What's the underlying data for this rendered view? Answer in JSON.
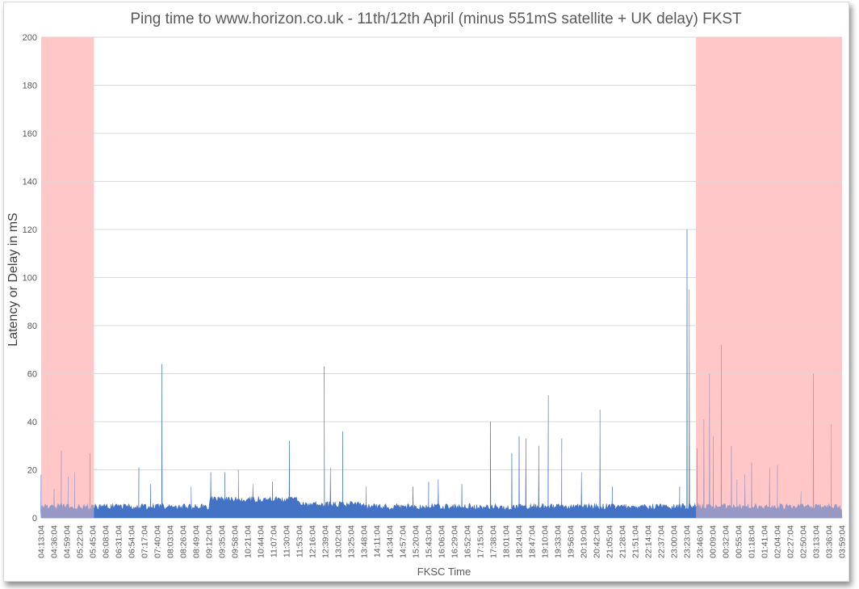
{
  "chart_data": {
    "type": "area",
    "title": "Ping time to www.horizon.co.uk  - 11th/12th April (minus 551mS satellite + UK delay) FKST",
    "xlabel": "FKSC Time",
    "ylabel": "Latency or Delay in mS",
    "ylim": [
      0,
      200
    ],
    "yticks": [
      0,
      20,
      40,
      60,
      80,
      100,
      120,
      140,
      160,
      180,
      200
    ],
    "grid": true,
    "x_tick_labels": [
      "04:13:04",
      "04:36:04",
      "04:59:04",
      "05:22:04",
      "05:45:04",
      "06:08:04",
      "06:31:04",
      "06:54:04",
      "07:17:04",
      "07:40:04",
      "08:03:04",
      "08:26:04",
      "08:49:04",
      "09:12:04",
      "09:35:04",
      "09:58:04",
      "10:21:04",
      "10:44:04",
      "11:07:04",
      "11:30:04",
      "11:53:04",
      "12:16:04",
      "12:39:04",
      "13:02:04",
      "13:25:04",
      "13:48:04",
      "14:11:04",
      "14:34:04",
      "14:57:04",
      "15:20:04",
      "15:43:04",
      "16:06:04",
      "16:29:04",
      "16:52:04",
      "17:15:04",
      "17:38:04",
      "18:01:04",
      "18:24:04",
      "18:47:04",
      "19:10:04",
      "19:33:04",
      "19:56:04",
      "20:19:04",
      "20:42:04",
      "21:05:04",
      "21:28:04",
      "21:51:04",
      "22:14:04",
      "22:37:04",
      "23:00:04",
      "23:23:04",
      "23:46:04",
      "00:09:04",
      "00:32:04",
      "00:55:04",
      "01:18:04",
      "01:41:04",
      "02:04:04",
      "02:27:04",
      "02:50:04",
      "03:13:04",
      "03:36:04",
      "03:59:04"
    ],
    "series": [
      {
        "baseline_ranges": [
          {
            "from": "04:13:04",
            "to": "09:12:04",
            "value": 4
          },
          {
            "from": "09:12:04",
            "to": "11:53:04",
            "value": 7
          },
          {
            "from": "11:53:04",
            "to": "13:48:04",
            "value": 5
          },
          {
            "from": "13:48:04",
            "to": "03:59:04",
            "value": 4
          }
        ],
        "spikes": [
          {
            "x": "04:13:04",
            "y": 18
          },
          {
            "x": "04:36:04",
            "y": 12
          },
          {
            "x": "04:49:04",
            "y": 28
          },
          {
            "x": "05:01:04",
            "y": 17
          },
          {
            "x": "05:13:04",
            "y": 19
          },
          {
            "x": "05:40:04",
            "y": 27
          },
          {
            "x": "07:07:04",
            "y": 21
          },
          {
            "x": "07:28:04",
            "y": 14
          },
          {
            "x": "07:48:04",
            "y": 64
          },
          {
            "x": "08:40:04",
            "y": 13
          },
          {
            "x": "09:15:04",
            "y": 19
          },
          {
            "x": "09:40:04",
            "y": 19
          },
          {
            "x": "10:04:04",
            "y": 20
          },
          {
            "x": "10:30:04",
            "y": 14
          },
          {
            "x": "11:05:04",
            "y": 15
          },
          {
            "x": "11:35:04",
            "y": 32
          },
          {
            "x": "12:37:04",
            "y": 63
          },
          {
            "x": "12:48:04",
            "y": 21
          },
          {
            "x": "13:10:04",
            "y": 36
          },
          {
            "x": "13:52:04",
            "y": 13
          },
          {
            "x": "15:15:04",
            "y": 13
          },
          {
            "x": "15:43:04",
            "y": 15
          },
          {
            "x": "16:00:04",
            "y": 16
          },
          {
            "x": "16:42:04",
            "y": 14
          },
          {
            "x": "17:33:04",
            "y": 40
          },
          {
            "x": "18:11:04",
            "y": 27
          },
          {
            "x": "18:24:04",
            "y": 34
          },
          {
            "x": "18:36:04",
            "y": 33
          },
          {
            "x": "18:59:04",
            "y": 30
          },
          {
            "x": "19:16:04",
            "y": 51
          },
          {
            "x": "19:40:04",
            "y": 33
          },
          {
            "x": "20:15:04",
            "y": 19
          },
          {
            "x": "20:48:04",
            "y": 45
          },
          {
            "x": "21:10:04",
            "y": 13
          },
          {
            "x": "23:10:04",
            "y": 13
          },
          {
            "x": "23:23:04",
            "y": 120
          },
          {
            "x": "23:27:04",
            "y": 95
          },
          {
            "x": "23:41:04",
            "y": 29
          },
          {
            "x": "23:53:04",
            "y": 41
          },
          {
            "x": "00:03:04",
            "y": 60
          },
          {
            "x": "00:10:04",
            "y": 34
          },
          {
            "x": "00:24:04",
            "y": 72
          },
          {
            "x": "00:42:04",
            "y": 30
          },
          {
            "x": "00:52:04",
            "y": 16
          },
          {
            "x": "01:06:04",
            "y": 18
          },
          {
            "x": "01:18:04",
            "y": 23
          },
          {
            "x": "01:50:04",
            "y": 21
          },
          {
            "x": "02:04:04",
            "y": 22
          },
          {
            "x": "02:46:04",
            "y": 11
          },
          {
            "x": "03:08:04",
            "y": 60
          },
          {
            "x": "03:40:04",
            "y": 39
          }
        ]
      }
    ],
    "shaded_regions": [
      {
        "from": "04:13:04",
        "to": "05:47:04"
      },
      {
        "from": "23:39:04",
        "to": "03:59:04"
      }
    ],
    "colors": {
      "series": "#4472c4",
      "shade": "#ffc7c7",
      "grid": "#d9d9d9",
      "text": "#595959"
    }
  }
}
